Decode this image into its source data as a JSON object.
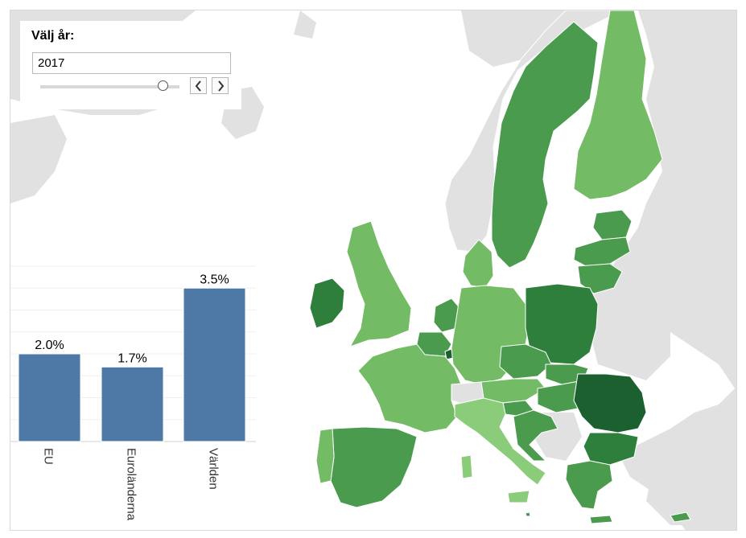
{
  "slider": {
    "title": "Välj år:",
    "year": "2017"
  },
  "chart_data": {
    "type": "bar",
    "categories": [
      "EU",
      "Euroländerna",
      "Världen"
    ],
    "values": [
      2.0,
      1.7,
      3.5
    ],
    "data_labels": [
      "2.0%",
      "1.7%",
      "3.5%"
    ],
    "title": "",
    "xlabel": "",
    "ylabel": "",
    "ylim": [
      0,
      4
    ],
    "grid": true,
    "bar_color": "#4e79a7"
  },
  "map": {
    "colors": {
      "sea": "#ffffff",
      "land_outside": "#e1e1e1",
      "light": "#74bb65",
      "lighter": "#8acc79",
      "medium": "#4a9b4e",
      "dark": "#2f7f3c",
      "darkest": "#1c6030"
    }
  }
}
